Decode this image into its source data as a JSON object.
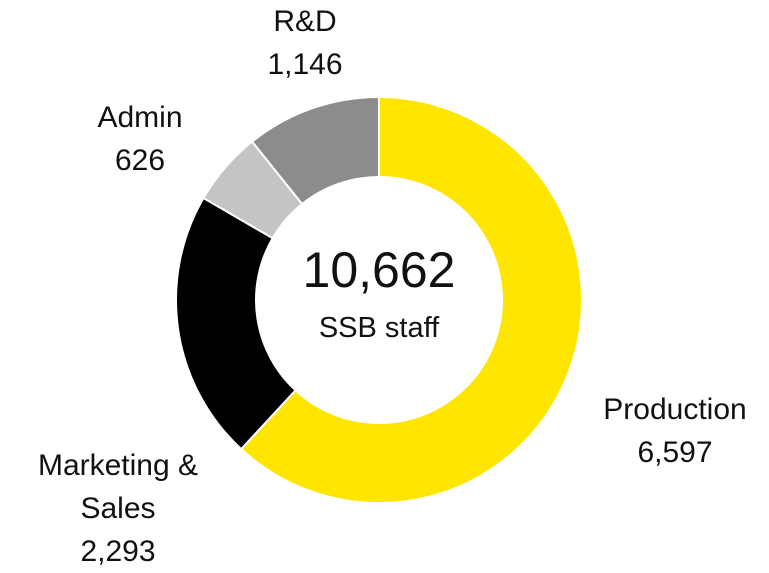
{
  "chart_data": {
    "type": "donut",
    "categories": [
      "Production",
      "Marketing & Sales",
      "Admin",
      "R&D"
    ],
    "values": [
      6597,
      2293,
      626,
      1146
    ],
    "value_labels": [
      "6,597",
      "2,293",
      "626",
      "1,146"
    ],
    "colors": [
      "#ffe600",
      "#000000",
      "#c4c4c4",
      "#8c8c8c"
    ],
    "center_title": "10,662",
    "center_subtitle": "SSB staff"
  }
}
